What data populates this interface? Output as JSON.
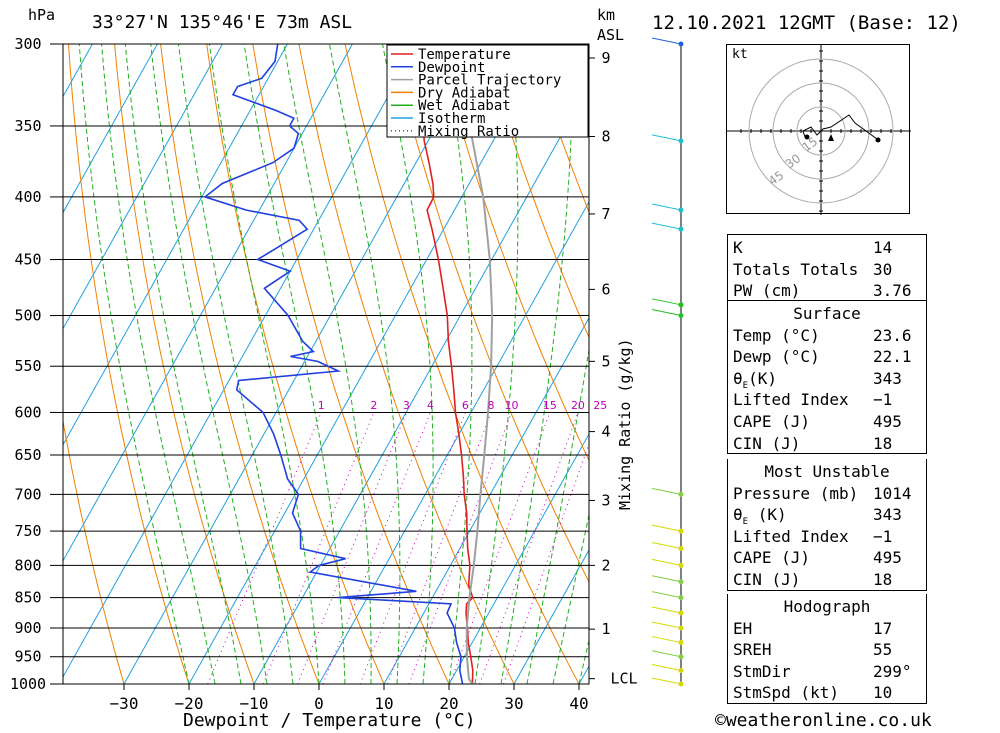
{
  "header": {
    "pressure_unit": "hPa",
    "location": "33°27'N 135°46'E 73m ASL",
    "km_label": "km",
    "asl_label": "ASL",
    "datetime": "12.10.2021 12GMT (Base: 12)"
  },
  "chart_data": {
    "type": "line",
    "title": "",
    "xlabel": "Dewpoint / Temperature (°C)",
    "ylabel": "hPa",
    "xlim": [
      -40,
      40
    ],
    "ylim": [
      1000,
      300
    ],
    "x_ticks": [
      "−30",
      "−20",
      "−10",
      "0",
      "10",
      "20",
      "30",
      "40"
    ],
    "x_tick_values": [
      -30,
      -20,
      -10,
      0,
      10,
      20,
      30,
      40
    ],
    "pressure_levels": [
      300,
      350,
      400,
      450,
      500,
      550,
      600,
      650,
      700,
      750,
      800,
      850,
      900,
      950,
      1000
    ],
    "height_axis_km": [
      "1",
      "2",
      "3",
      "4",
      "5",
      "6",
      "7",
      "8",
      "9"
    ],
    "height_axis_values": [
      1,
      2,
      3,
      4,
      5,
      6,
      7,
      8,
      9
    ],
    "lcl_label": "LCL",
    "mixing_ratio_axis_label": "Mixing Ratio (g/kg)",
    "mixing_ratio_labels": [
      "1",
      "2",
      "3",
      "4",
      "6",
      "8",
      "10",
      "15",
      "20",
      "25"
    ],
    "mixing_ratio_values": [
      1,
      2,
      3,
      4,
      6,
      8,
      10,
      15,
      20,
      25
    ],
    "legend": [
      {
        "name": "Temperature",
        "color": "#e02020",
        "style": "solid"
      },
      {
        "name": "Dewpoint",
        "color": "#2040e0",
        "style": "solid"
      },
      {
        "name": "Parcel Trajectory",
        "color": "#a0a0a0",
        "style": "solid"
      },
      {
        "name": "Dry Adiabat",
        "color": "#f08000",
        "style": "solid"
      },
      {
        "name": "Wet Adiabat",
        "color": "#20b020",
        "style": "solid"
      },
      {
        "name": "Isotherm",
        "color": "#20a0e0",
        "style": "solid"
      },
      {
        "name": "Mixing Ratio",
        "color": "#c000c0",
        "style": "dotted"
      }
    ],
    "legend_position": "top-right",
    "series": [
      {
        "name": "Temperature",
        "color": "#e02020",
        "points": [
          [
            1000,
            23.6
          ],
          [
            975,
            22.5
          ],
          [
            950,
            21
          ],
          [
            925,
            19.4
          ],
          [
            900,
            18
          ],
          [
            875,
            16.5
          ],
          [
            860,
            15.8
          ],
          [
            850,
            16.2
          ],
          [
            830,
            14.5
          ],
          [
            800,
            13
          ],
          [
            775,
            11.2
          ],
          [
            750,
            9.6
          ],
          [
            725,
            8
          ],
          [
            700,
            6
          ],
          [
            675,
            4.2
          ],
          [
            650,
            2.2
          ],
          [
            625,
            0
          ],
          [
            600,
            -2.4
          ],
          [
            575,
            -4.6
          ],
          [
            550,
            -7
          ],
          [
            525,
            -9.6
          ],
          [
            500,
            -12
          ],
          [
            475,
            -15
          ],
          [
            450,
            -18.2
          ],
          [
            425,
            -21.8
          ],
          [
            410,
            -24.2
          ],
          [
            400,
            -24.3
          ],
          [
            390,
            -25.6
          ],
          [
            375,
            -28
          ],
          [
            360,
            -30.6
          ],
          [
            350,
            -32
          ],
          [
            340,
            -34.5
          ],
          [
            330,
            -36.4
          ],
          [
            320,
            -38.5
          ],
          [
            310,
            -40.6
          ],
          [
            300,
            -42.6
          ]
        ]
      },
      {
        "name": "Dewpoint",
        "color": "#2040e0",
        "points": [
          [
            1000,
            22.1
          ],
          [
            975,
            20.5
          ],
          [
            950,
            19.5
          ],
          [
            925,
            17.6
          ],
          [
            900,
            16
          ],
          [
            875,
            13.6
          ],
          [
            860,
            13.4
          ],
          [
            850,
            -4.5
          ],
          [
            840,
            7
          ],
          [
            810,
            -11
          ],
          [
            800,
            -10.2
          ],
          [
            790,
            -6.7
          ],
          [
            775,
            -14.5
          ],
          [
            750,
            -16
          ],
          [
            725,
            -18.8
          ],
          [
            700,
            -19.5
          ],
          [
            680,
            -22.5
          ],
          [
            650,
            -25.6
          ],
          [
            625,
            -28.5
          ],
          [
            600,
            -32
          ],
          [
            575,
            -38
          ],
          [
            565,
            -38.5
          ],
          [
            555,
            -24
          ],
          [
            545,
            -28
          ],
          [
            540,
            -32.6
          ],
          [
            535,
            -29.5
          ],
          [
            525,
            -32
          ],
          [
            500,
            -36.5
          ],
          [
            475,
            -42.5
          ],
          [
            460,
            -40
          ],
          [
            450,
            -46
          ],
          [
            440,
            -44
          ],
          [
            425,
            -41
          ],
          [
            418,
            -43
          ],
          [
            410,
            -52
          ],
          [
            400,
            -59.5
          ],
          [
            390,
            -58
          ],
          [
            375,
            -52
          ],
          [
            365,
            -50
          ],
          [
            355,
            -50.6
          ],
          [
            350,
            -52.6
          ],
          [
            345,
            -52.6
          ],
          [
            340,
            -56
          ],
          [
            330,
            -64
          ],
          [
            325,
            -64
          ],
          [
            320,
            -61
          ],
          [
            310,
            -60.4
          ],
          [
            300,
            -61.5
          ]
        ]
      },
      {
        "name": "Parcel Trajectory",
        "color": "#a0a0a0",
        "points": [
          [
            1000,
            23.6
          ],
          [
            990,
            22.6
          ],
          [
            950,
            20.4
          ],
          [
            900,
            17.9
          ],
          [
            850,
            15.7
          ],
          [
            800,
            13.6
          ],
          [
            750,
            11.2
          ],
          [
            700,
            8.5
          ],
          [
            650,
            5.7
          ],
          [
            600,
            2.6
          ],
          [
            550,
            -0.9
          ],
          [
            500,
            -5.1
          ],
          [
            450,
            -10.3
          ],
          [
            400,
            -16.7
          ],
          [
            350,
            -24.9
          ],
          [
            300,
            -35.5
          ]
        ]
      }
    ]
  },
  "wind_barbs": [
    {
      "p": 1000,
      "color": "#d8d800"
    },
    {
      "p": 975,
      "color": "#d8d800"
    },
    {
      "p": 950,
      "color": "#80d040"
    },
    {
      "p": 925,
      "color": "#d8d800"
    },
    {
      "p": 900,
      "color": "#d8d800"
    },
    {
      "p": 875,
      "color": "#d8d800"
    },
    {
      "p": 850,
      "color": "#80d040"
    },
    {
      "p": 825,
      "color": "#80d040"
    },
    {
      "p": 800,
      "color": "#d8d800"
    },
    {
      "p": 775,
      "color": "#d8d800"
    },
    {
      "p": 750,
      "color": "#d8d800"
    },
    {
      "p": 700,
      "color": "#80d040"
    },
    {
      "p": 500,
      "color": "#20c020"
    },
    {
      "p": 490,
      "color": "#20c020"
    },
    {
      "p": 425,
      "color": "#20c0d0"
    },
    {
      "p": 410,
      "color": "#20c0d0"
    },
    {
      "p": 360,
      "color": "#20c0d0"
    },
    {
      "p": 300,
      "color": "#2060e0"
    }
  ],
  "hodograph": {
    "unit_label": "kt",
    "ring_labels": [
      "15",
      "30",
      "45"
    ],
    "ring_values": [
      15,
      30,
      45
    ]
  },
  "indices": {
    "rows": [
      {
        "key": "K",
        "value": "14"
      },
      {
        "key": "Totals Totals",
        "value": "30"
      },
      {
        "key": "PW (cm)",
        "value": "3.76"
      }
    ]
  },
  "surface": {
    "title": "Surface",
    "rows": [
      {
        "key": "Temp (°C)",
        "value": "23.6"
      },
      {
        "key": "Dewp (°C)",
        "value": "22.1"
      },
      {
        "key": "θE(K)",
        "value": "343"
      },
      {
        "key": "Lifted Index",
        "value": "−1"
      },
      {
        "key": "CAPE (J)",
        "value": "495"
      },
      {
        "key": "CIN (J)",
        "value": "18"
      }
    ]
  },
  "most_unstable": {
    "title": "Most Unstable",
    "rows": [
      {
        "key": "Pressure (mb)",
        "value": "1014"
      },
      {
        "key": "θE (K)",
        "value": "343"
      },
      {
        "key": "Lifted Index",
        "value": "−1"
      },
      {
        "key": "CAPE (J)",
        "value": "495"
      },
      {
        "key": "CIN (J)",
        "value": "18"
      }
    ]
  },
  "hodograph_table": {
    "title": "Hodograph",
    "rows": [
      {
        "key": "EH",
        "value": "17"
      },
      {
        "key": "SREH",
        "value": "55"
      },
      {
        "key": "StmDir",
        "value": "299°"
      },
      {
        "key": "StmSpd (kt)",
        "value": "10"
      }
    ]
  },
  "footer": {
    "copyright": "©weatheronline.co.uk"
  }
}
